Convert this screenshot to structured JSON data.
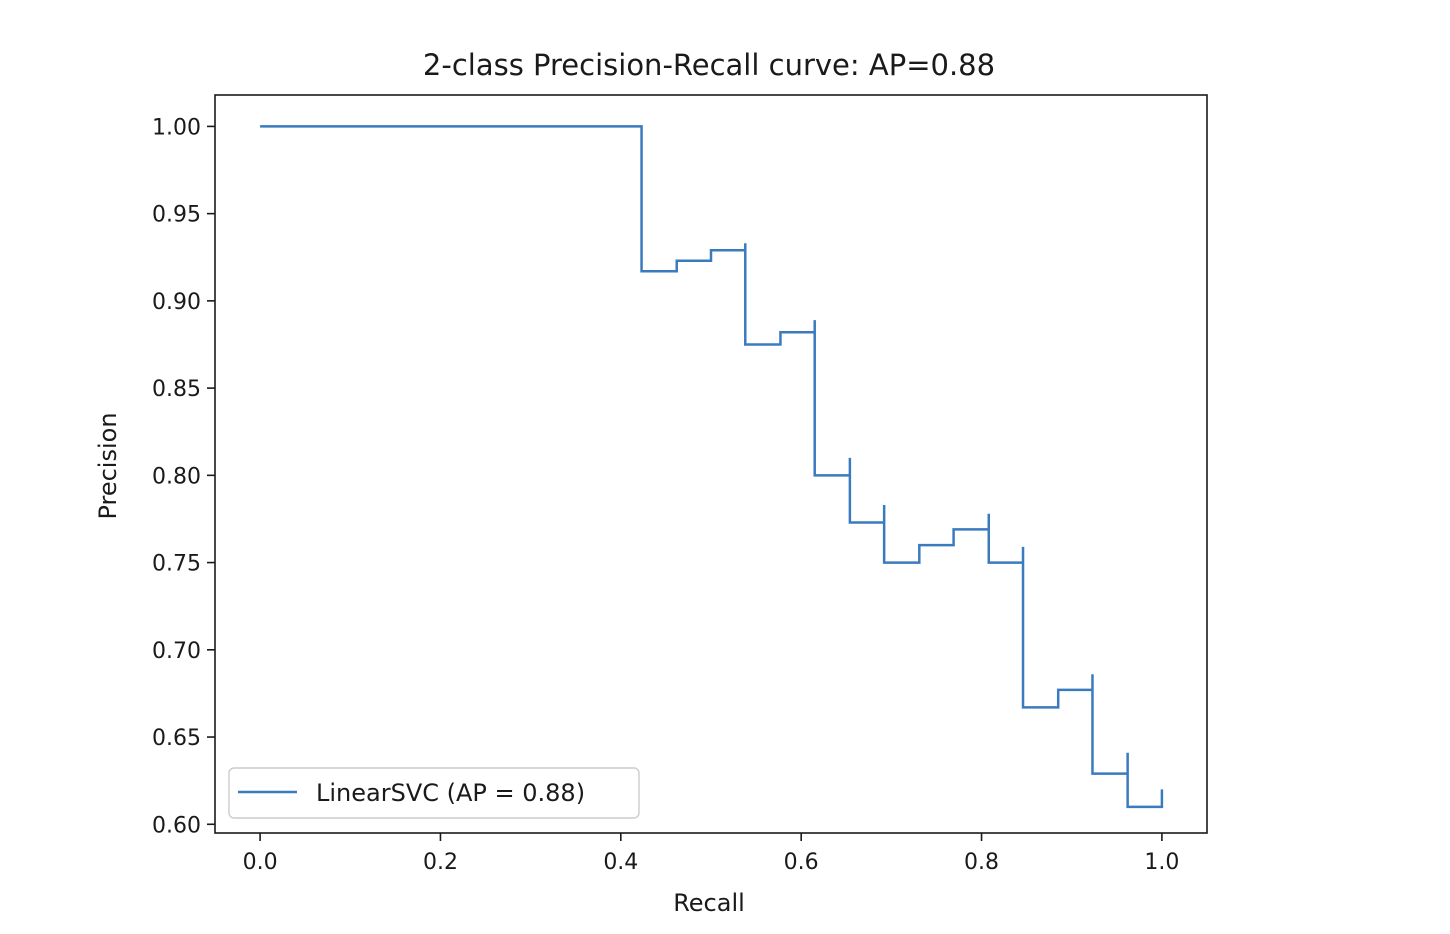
{
  "chart_data": {
    "type": "line",
    "title": "2-class Precision-Recall curve: AP=0.88",
    "xlabel": "Recall",
    "ylabel": "Precision",
    "xlim": [
      -0.05,
      1.05
    ],
    "ylim": [
      0.595,
      1.018
    ],
    "xticks": [
      0.0,
      0.2,
      0.4,
      0.6,
      0.8,
      1.0
    ],
    "xtick_labels": [
      "0.0",
      "0.2",
      "0.4",
      "0.6",
      "0.8",
      "1.0"
    ],
    "yticks": [
      0.6,
      0.65,
      0.7,
      0.75,
      0.8,
      0.85,
      0.9,
      0.95,
      1.0
    ],
    "ytick_labels": [
      "0.60",
      "0.65",
      "0.70",
      "0.75",
      "0.80",
      "0.85",
      "0.90",
      "0.95",
      "1.00"
    ],
    "grid": false,
    "legend": {
      "position": "lower-left",
      "entries": [
        "LinearSVC (AP = 0.88)"
      ]
    },
    "series": [
      {
        "name": "LinearSVC (AP = 0.88)",
        "color": "#3a7bbf",
        "drawstyle": "steps-post",
        "x": [
          0.0,
          0.423,
          0.423,
          0.462,
          0.5,
          0.538,
          0.538,
          0.577,
          0.615,
          0.615,
          0.654,
          0.654,
          0.692,
          0.692,
          0.731,
          0.769,
          0.808,
          0.808,
          0.846,
          0.846,
          0.885,
          0.923,
          0.923,
          0.962,
          0.962,
          1.0
        ],
        "y": [
          1.0,
          1.0,
          0.917,
          0.923,
          0.929,
          0.933,
          0.875,
          0.882,
          0.889,
          0.8,
          0.81,
          0.773,
          0.783,
          0.75,
          0.76,
          0.769,
          0.778,
          0.75,
          0.759,
          0.667,
          0.677,
          0.686,
          0.629,
          0.641,
          0.61,
          0.62
        ]
      }
    ]
  }
}
